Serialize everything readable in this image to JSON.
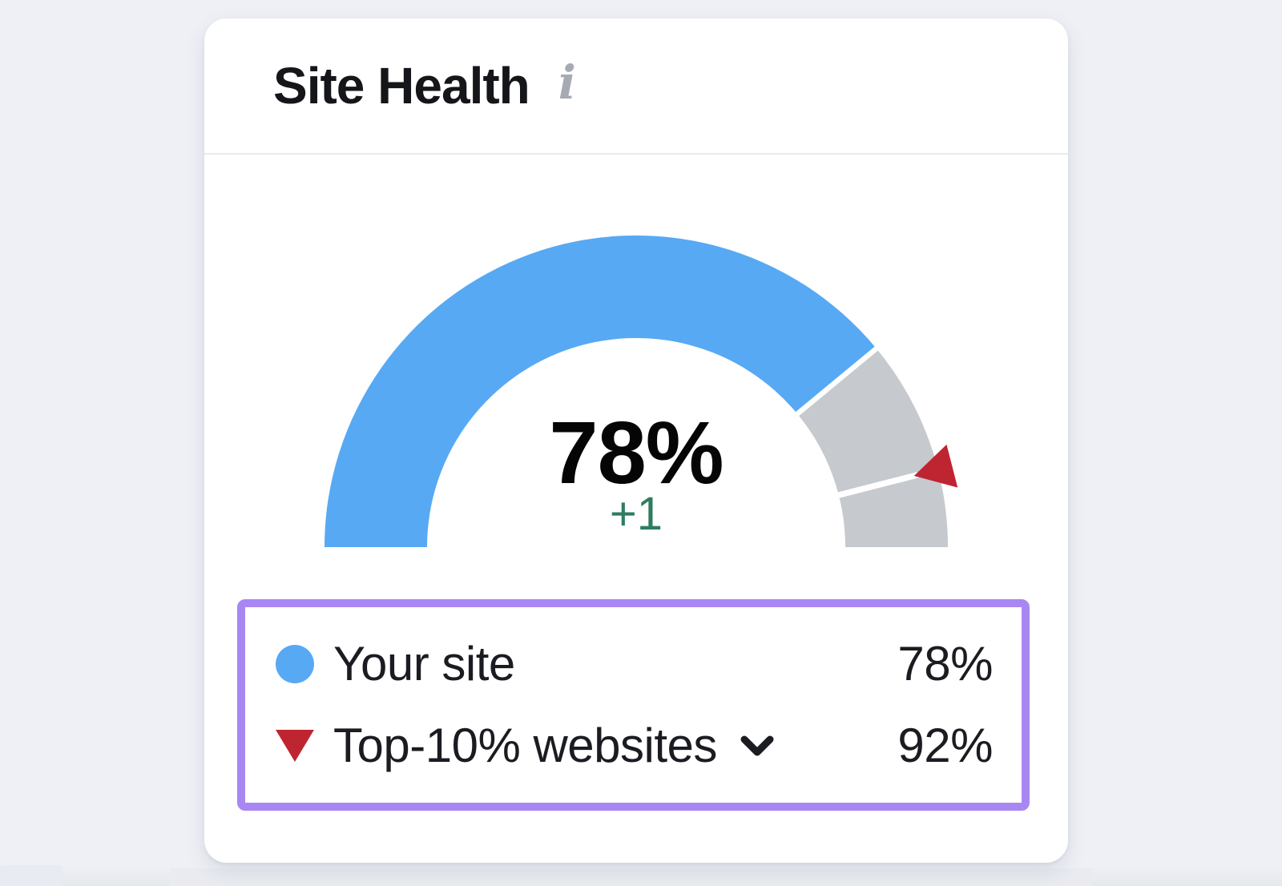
{
  "window": {
    "background": "#eef0f5"
  },
  "card": {
    "title": "Site Health",
    "icons": {
      "info_glyph": "i"
    }
  },
  "gauge": {
    "value_label": "78%",
    "delta_label": "+1"
  },
  "legend": {
    "rows": [
      {
        "label": "Your site",
        "value": "78%",
        "marker": "blue-circle"
      },
      {
        "label": "Top-10% websites",
        "value": "92%",
        "marker": "red-triangle-down",
        "has_dropdown": true
      }
    ]
  },
  "chart_data": {
    "type": "gauge",
    "title": "Site Health",
    "min": 0,
    "max": 100,
    "unit": "%",
    "value": 78,
    "delta": "+1",
    "benchmark": 92,
    "benchmark_name": "Top-10% websites",
    "series": [
      {
        "name": "Your site",
        "value": 78,
        "color": "#57a9f3",
        "marker": "circle"
      },
      {
        "name": "Top-10% websites",
        "value": 92,
        "color": "#bf2531",
        "marker": "triangle-down"
      }
    ],
    "track_color": "#c6c9cd",
    "layout": {
      "shape": "semicircle",
      "start_angle": 180,
      "end_angle": 0,
      "legend_position": "bottom",
      "grid": false
    }
  },
  "colors": {
    "blue": "#57a9f3",
    "track_gray": "#c6c9cd",
    "red": "#bf2531",
    "green_delta": "#2e7d5e",
    "purple_highlight": "#a987f3",
    "text_dark": "#1b1c22",
    "info_gray": "#a6aab3",
    "divider": "#e9eaef",
    "card_bg": "#ffffff",
    "page_bg": "#eef0f5"
  }
}
